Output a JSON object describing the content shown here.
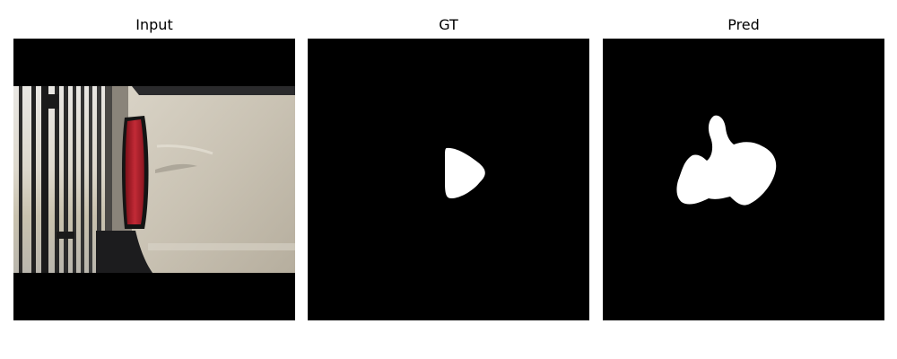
{
  "panels": [
    {
      "title": "Input"
    },
    {
      "title": "GT"
    },
    {
      "title": "Pred"
    }
  ],
  "colors": {
    "background": "#ffffff",
    "mask_background": "#000000",
    "mask_foreground": "#ffffff",
    "truck_body": "#cfc9bd",
    "taillight": "#b0202c"
  }
}
